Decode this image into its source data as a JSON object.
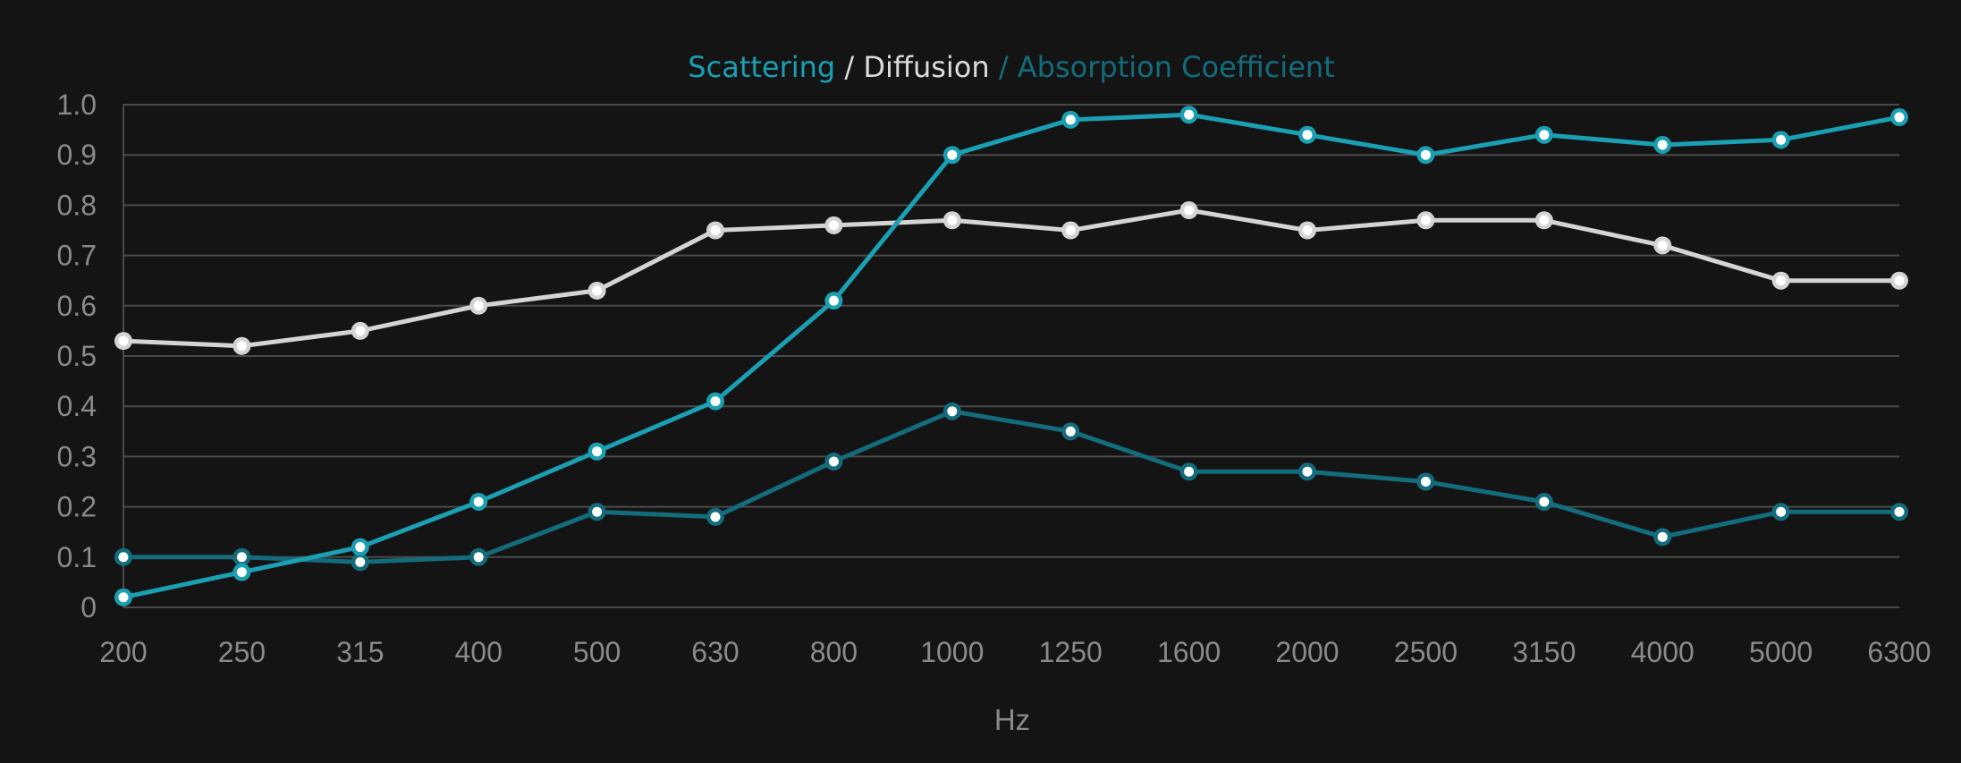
{
  "chart_data": {
    "type": "line",
    "title_parts": [
      {
        "text": "Scattering",
        "color": "#1b9fb3"
      },
      {
        "text": " / ",
        "color": "#dcdcdc"
      },
      {
        "text": "Diffusion",
        "color": "#dcdcdc"
      },
      {
        "text": " / Absorption Coefficient",
        "color": "#136c7c"
      }
    ],
    "xlabel": "Hz",
    "categories": [
      "200",
      "250",
      "315",
      "400",
      "500",
      "630",
      "800",
      "1000",
      "1250",
      "1600",
      "2000",
      "2500",
      "3150",
      "4000",
      "5000",
      "6300"
    ],
    "ylim": [
      0,
      1.0
    ],
    "y_ticks": [
      0,
      0.1,
      0.2,
      0.3,
      0.4,
      0.5,
      0.6,
      0.7,
      0.8,
      0.9,
      1.0
    ],
    "y_tick_labels": [
      "0",
      "0.1",
      "0.2",
      "0.3",
      "0.4",
      "0.5",
      "0.6",
      "0.7",
      "0.8",
      "0.9",
      "1.0"
    ],
    "grid": true,
    "colors": {
      "background": "#141414",
      "grid": "#4a4a4a",
      "tick_text": "#8a8a8a"
    },
    "series": [
      {
        "key": "diffusion",
        "color": "#d4d4d4",
        "marker_fill": "#ffffff",
        "values": [
          0.53,
          0.52,
          0.55,
          0.6,
          0.63,
          0.75,
          0.76,
          0.77,
          0.75,
          0.79,
          0.75,
          0.77,
          0.77,
          0.72,
          0.65,
          0.65
        ]
      },
      {
        "key": "absorption",
        "color": "#136c7c",
        "marker_fill": "#ffffff",
        "values": [
          0.1,
          0.1,
          0.09,
          0.1,
          0.19,
          0.18,
          0.29,
          0.39,
          0.35,
          0.27,
          0.27,
          0.25,
          0.21,
          0.14,
          0.19,
          0.19
        ]
      },
      {
        "key": "scattering",
        "color": "#1b9fb3",
        "marker_fill": "#ffffff",
        "values": [
          0.02,
          0.07,
          0.12,
          0.21,
          0.31,
          0.41,
          0.61,
          0.9,
          0.97,
          0.98,
          0.94,
          0.9,
          0.94,
          0.92,
          0.93,
          0.975
        ]
      }
    ]
  }
}
